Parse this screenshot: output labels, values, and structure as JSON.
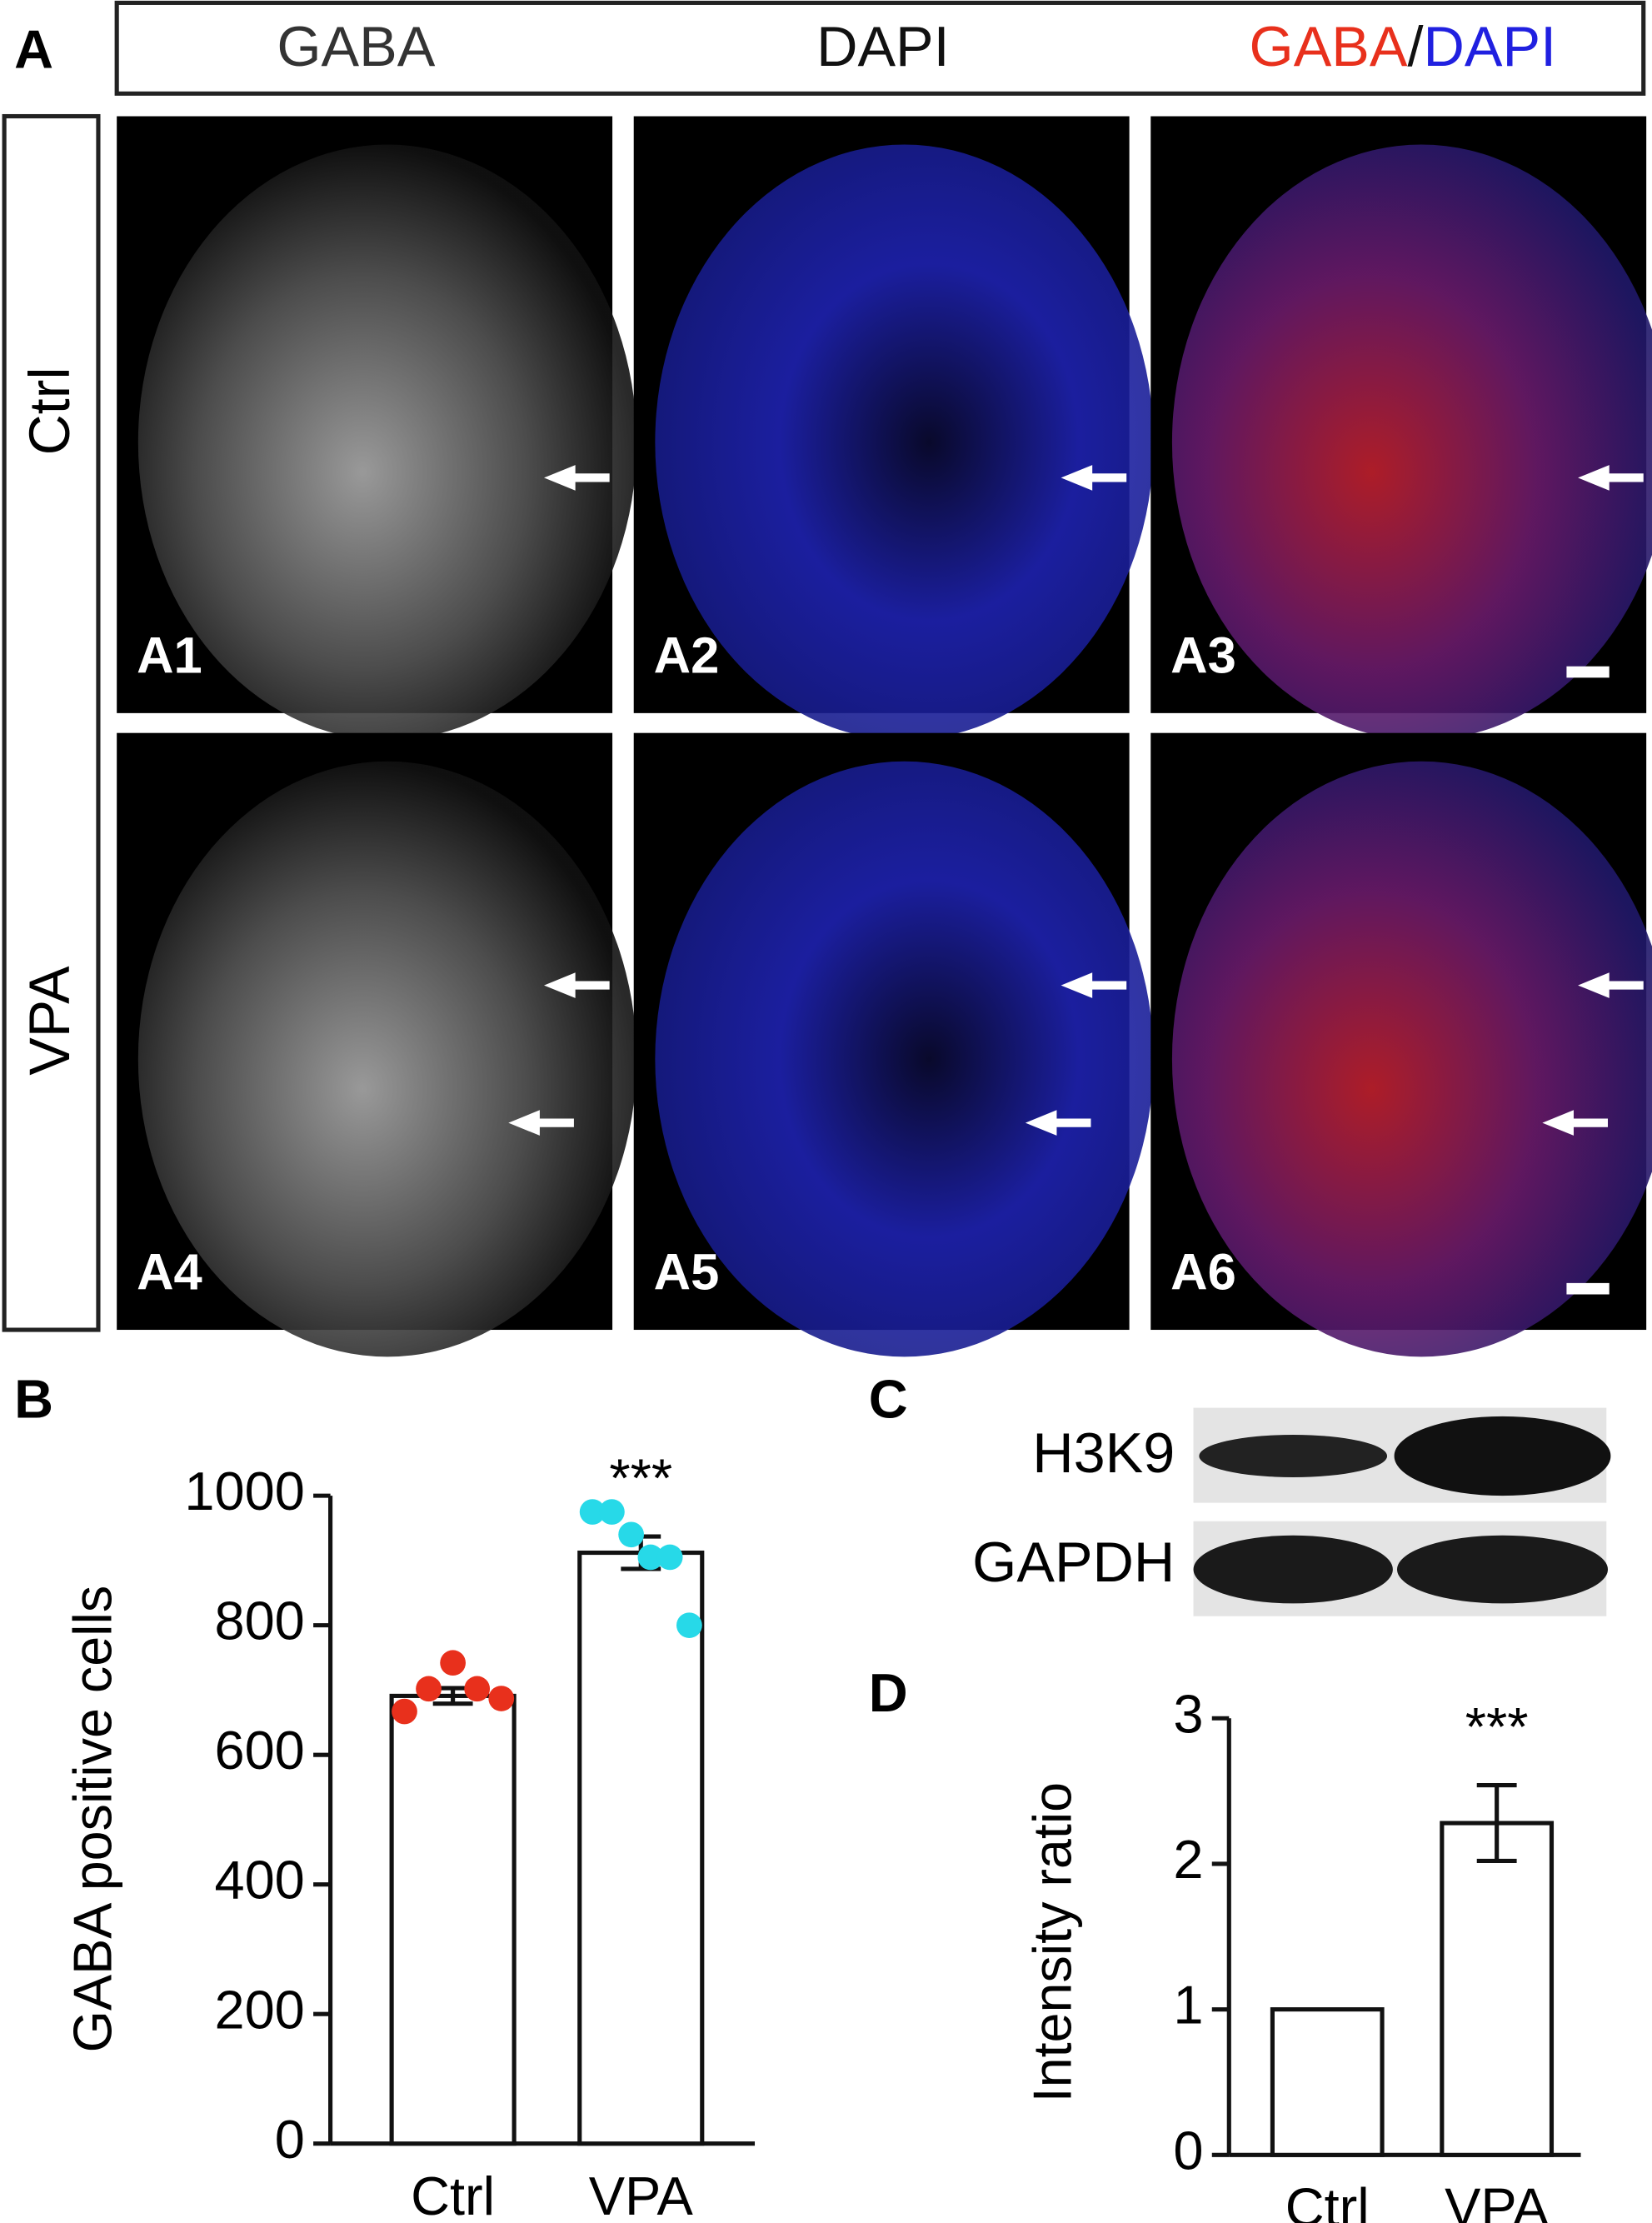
{
  "panel_labels": [
    "A",
    "B",
    "C",
    "D"
  ],
  "header": {
    "labels": [
      "GABA",
      "DAPI"
    ],
    "merge": {
      "red": "GABA",
      "sep": "/",
      "blue": "DAPI"
    }
  },
  "rows": [
    "Ctrl",
    "VPA"
  ],
  "images": [
    "A1",
    "A2",
    "A3",
    "A4",
    "A5",
    "A6"
  ],
  "blot": {
    "labels": [
      "H3K9",
      "GAPDH"
    ]
  },
  "chart_data": [
    {
      "type": "bar",
      "ylabel": "GABA positive cells",
      "categories": [
        "Ctrl",
        "VPA"
      ],
      "values": [
        691,
        912
      ],
      "errors": [
        12,
        25
      ],
      "color": "#ffffff",
      "points": [
        [
          667,
          702,
          742,
          702,
          687
        ],
        [
          975,
          975,
          940,
          905,
          905,
          800
        ]
      ],
      "point_colors": [
        "#e8301c",
        "#27d9e8"
      ],
      "ylim": [
        0,
        1000
      ],
      "yticks": [
        0,
        200,
        400,
        600,
        800,
        1000
      ],
      "annotation": "***",
      "grid": false
    },
    {
      "type": "bar",
      "ylabel": "Intensity ratio",
      "categories": [
        "Ctrl",
        "VPA"
      ],
      "values": [
        1,
        2.28
      ],
      "errors": [
        0,
        0.26
      ],
      "color": "#ffffff",
      "ylim": [
        0,
        3
      ],
      "yticks": [
        0,
        1,
        2,
        3
      ],
      "annotation": "***",
      "grid": false
    }
  ]
}
